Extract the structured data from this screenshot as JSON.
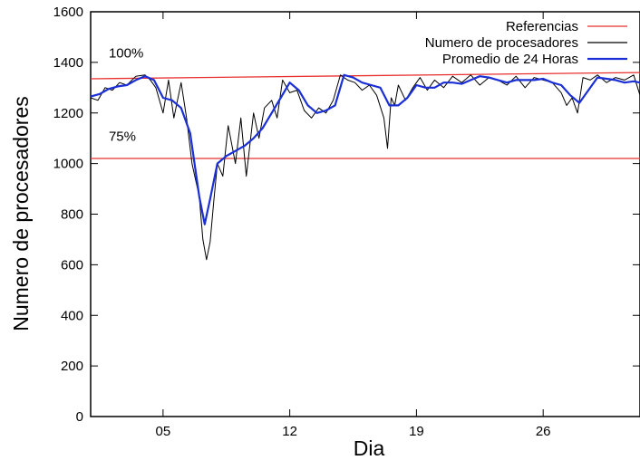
{
  "chart_data": {
    "type": "line",
    "title": "",
    "xlabel": "Dia",
    "ylabel": "Numero de procesadores",
    "xlim": [
      1.0,
      31.35
    ],
    "ylim": [
      0,
      1600
    ],
    "xticks": [
      {
        "value": 5,
        "label": "05"
      },
      {
        "value": 12,
        "label": "12"
      },
      {
        "value": 19,
        "label": "19"
      },
      {
        "value": 26,
        "label": "26"
      }
    ],
    "yticks": [
      0,
      200,
      400,
      600,
      800,
      1000,
      1200,
      1400,
      1600
    ],
    "legend_position": "top-right",
    "grid": false,
    "annotations": [
      {
        "text": "100%",
        "x": 2.0,
        "y": 1420
      },
      {
        "text": "75%",
        "x": 2.0,
        "y": 1090
      }
    ],
    "series": [
      {
        "name": "Referencias",
        "color": "#e8312f",
        "style": "reference",
        "lines": [
          {
            "x": [
              1.0,
              31.35
            ],
            "y": [
              1335,
              1360
            ]
          },
          {
            "x": [
              1.0,
              31.35
            ],
            "y": [
              1020,
              1020
            ]
          }
        ]
      },
      {
        "name": "Numero de procesadores",
        "color": "#000000",
        "style": "raw",
        "x": [
          1.0,
          1.4,
          1.8,
          2.2,
          2.6,
          3.0,
          3.5,
          4.0,
          4.3,
          4.6,
          5.0,
          5.3,
          5.6,
          6.0,
          6.3,
          6.6,
          7.0,
          7.2,
          7.4,
          7.6,
          7.8,
          8.0,
          8.3,
          8.6,
          9.0,
          9.3,
          9.6,
          10.0,
          10.3,
          10.6,
          11.0,
          11.3,
          11.6,
          12.0,
          12.4,
          12.8,
          13.2,
          13.6,
          14.0,
          14.4,
          14.8,
          15.2,
          15.6,
          16.0,
          16.4,
          16.8,
          17.2,
          17.4,
          17.6,
          17.8,
          18.0,
          18.4,
          18.8,
          19.2,
          19.6,
          20.0,
          20.5,
          21.0,
          21.5,
          22.0,
          22.5,
          23.0,
          23.5,
          24.0,
          24.5,
          25.0,
          25.5,
          26.0,
          26.5,
          27.0,
          27.3,
          27.6,
          27.9,
          28.2,
          28.6,
          29.0,
          29.5,
          30.0,
          30.5,
          31.0,
          31.35
        ],
        "y": [
          1260,
          1250,
          1300,
          1290,
          1320,
          1310,
          1345,
          1350,
          1330,
          1300,
          1200,
          1330,
          1180,
          1320,
          1180,
          1000,
          870,
          700,
          620,
          690,
          850,
          1000,
          950,
          1150,
          1000,
          1180,
          950,
          1200,
          1100,
          1220,
          1250,
          1180,
          1330,
          1280,
          1290,
          1210,
          1180,
          1220,
          1200,
          1250,
          1350,
          1330,
          1320,
          1290,
          1310,
          1270,
          1180,
          1060,
          1260,
          1230,
          1310,
          1250,
          1300,
          1340,
          1290,
          1330,
          1300,
          1345,
          1320,
          1350,
          1310,
          1340,
          1330,
          1310,
          1345,
          1300,
          1340,
          1330,
          1320,
          1280,
          1230,
          1260,
          1200,
          1340,
          1330,
          1350,
          1320,
          1340,
          1330,
          1350,
          1270
        ]
      },
      {
        "name": "Promedio de 24 Horas",
        "color": "#1a2fd6",
        "style": "average",
        "x": [
          1.0,
          1.5,
          2.0,
          2.5,
          3.0,
          3.5,
          4.0,
          4.5,
          5.0,
          5.5,
          6.0,
          6.5,
          7.0,
          7.3,
          7.6,
          8.0,
          8.5,
          9.0,
          9.5,
          10.0,
          10.5,
          11.0,
          11.5,
          12.0,
          12.5,
          13.0,
          13.5,
          14.0,
          14.5,
          15.0,
          15.5,
          16.0,
          16.5,
          17.0,
          17.5,
          18.0,
          18.5,
          19.0,
          19.5,
          20.0,
          20.5,
          21.0,
          21.5,
          22.0,
          22.5,
          23.0,
          23.5,
          24.0,
          24.5,
          25.0,
          25.5,
          26.0,
          26.5,
          27.0,
          27.5,
          28.0,
          28.5,
          29.0,
          29.5,
          30.0,
          30.5,
          31.0,
          31.35
        ],
        "y": [
          1265,
          1275,
          1295,
          1305,
          1310,
          1330,
          1345,
          1330,
          1260,
          1250,
          1220,
          1120,
          870,
          760,
          860,
          1000,
          1030,
          1050,
          1070,
          1100,
          1140,
          1200,
          1260,
          1320,
          1290,
          1230,
          1200,
          1210,
          1230,
          1350,
          1340,
          1320,
          1310,
          1300,
          1230,
          1230,
          1260,
          1310,
          1300,
          1300,
          1320,
          1320,
          1315,
          1330,
          1345,
          1340,
          1330,
          1320,
          1330,
          1330,
          1330,
          1335,
          1320,
          1310,
          1270,
          1240,
          1290,
          1340,
          1335,
          1330,
          1320,
          1325,
          1320
        ]
      }
    ]
  }
}
